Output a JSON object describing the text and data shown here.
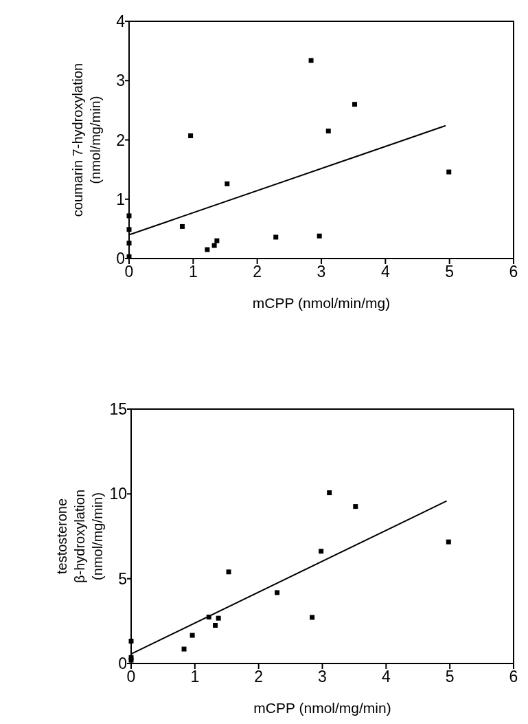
{
  "chart_data": [
    {
      "type": "scatter",
      "xlabel": "mCPP (nmol/min/mg)",
      "ylabel": "coumarin 7-hydroxylation\n(nmol/mg/min)",
      "xlim": [
        0,
        6
      ],
      "ylim": [
        0,
        4
      ],
      "xticks": [
        0,
        1,
        2,
        3,
        4,
        5,
        6
      ],
      "yticks": [
        0,
        1,
        2,
        3,
        4
      ],
      "grid": false,
      "series": [
        {
          "marker": "square",
          "color": "#000000",
          "x": [
            0,
            0,
            0,
            0,
            0.83,
            0.96,
            1.22,
            1.33,
            1.37,
            1.53,
            2.29,
            2.84,
            2.97,
            3.11,
            3.52,
            4.99
          ],
          "values": [
            0.72,
            0.49,
            0.26,
            0.03,
            0.54,
            2.07,
            0.15,
            0.22,
            0.3,
            1.26,
            0.36,
            3.34,
            0.38,
            2.15,
            2.6,
            1.46
          ]
        },
        {
          "type": "line",
          "marker": "none",
          "color": "#000000",
          "x": [
            0,
            4.94
          ],
          "values": [
            0.4,
            2.24
          ]
        }
      ]
    },
    {
      "type": "scatter",
      "xlabel": "mCPP (nmol/mg/min)",
      "ylabel": "testosterone\nβ-hydroxylation\n(nmol/mg/min)",
      "xlim": [
        0,
        6
      ],
      "ylim": [
        0,
        15
      ],
      "xticks": [
        0,
        1,
        2,
        3,
        4,
        5,
        6
      ],
      "yticks": [
        0,
        5,
        10,
        15
      ],
      "grid": false,
      "series": [
        {
          "marker": "square",
          "color": "#000000",
          "x": [
            0,
            0,
            0,
            0.83,
            0.96,
            1.22,
            1.32,
            1.37,
            1.53,
            2.29,
            2.84,
            2.98,
            3.11,
            3.52,
            4.98
          ],
          "values": [
            1.32,
            0.35,
            0.2,
            0.85,
            1.66,
            2.74,
            2.25,
            2.67,
            5.4,
            4.18,
            2.72,
            6.62,
            10.07,
            9.26,
            7.17
          ]
        },
        {
          "type": "line",
          "marker": "none",
          "color": "#000000",
          "x": [
            0,
            4.95
          ],
          "values": [
            0.56,
            9.58
          ]
        }
      ]
    }
  ]
}
